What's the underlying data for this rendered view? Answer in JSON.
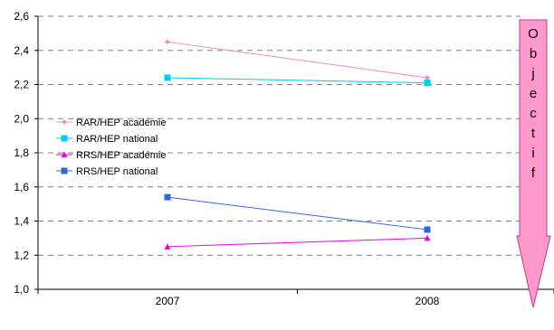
{
  "chart_data": {
    "type": "line",
    "categories": [
      "2007",
      "2008"
    ],
    "ylim": [
      1.0,
      2.6
    ],
    "yticks": [
      1.0,
      1.2,
      1.4,
      1.6,
      1.8,
      2.0,
      2.2,
      2.4,
      2.6
    ],
    "ytick_labels": [
      "1,0",
      "1,2",
      "1,4",
      "1,6",
      "1,8",
      "2,0",
      "2,2",
      "2,4",
      "2,6"
    ],
    "grid": "horizontal dashed",
    "legend_position": "left",
    "series": [
      {
        "name": "RAR/HEP académie",
        "values": [
          2.45,
          2.24
        ],
        "color": "#F08CC8",
        "marker": "diamond"
      },
      {
        "name": "RAR/HEP national",
        "values": [
          2.24,
          2.21
        ],
        "color": "#00CCEE",
        "marker": "square"
      },
      {
        "name": "RRS/HEP académie",
        "values": [
          1.25,
          1.3
        ],
        "color": "#E800E8",
        "marker": "triangle"
      },
      {
        "name": "RRS/HEP national",
        "values": [
          1.54,
          1.35
        ],
        "color": "#3366DD",
        "marker": "square"
      }
    ],
    "annotation": {
      "text": "Objectif",
      "letters": [
        "O",
        "b",
        "j",
        "e",
        "c",
        "t",
        "i",
        "f"
      ],
      "arrow_fill": "#FF99CC",
      "arrow_stroke": "#CC3399"
    }
  }
}
